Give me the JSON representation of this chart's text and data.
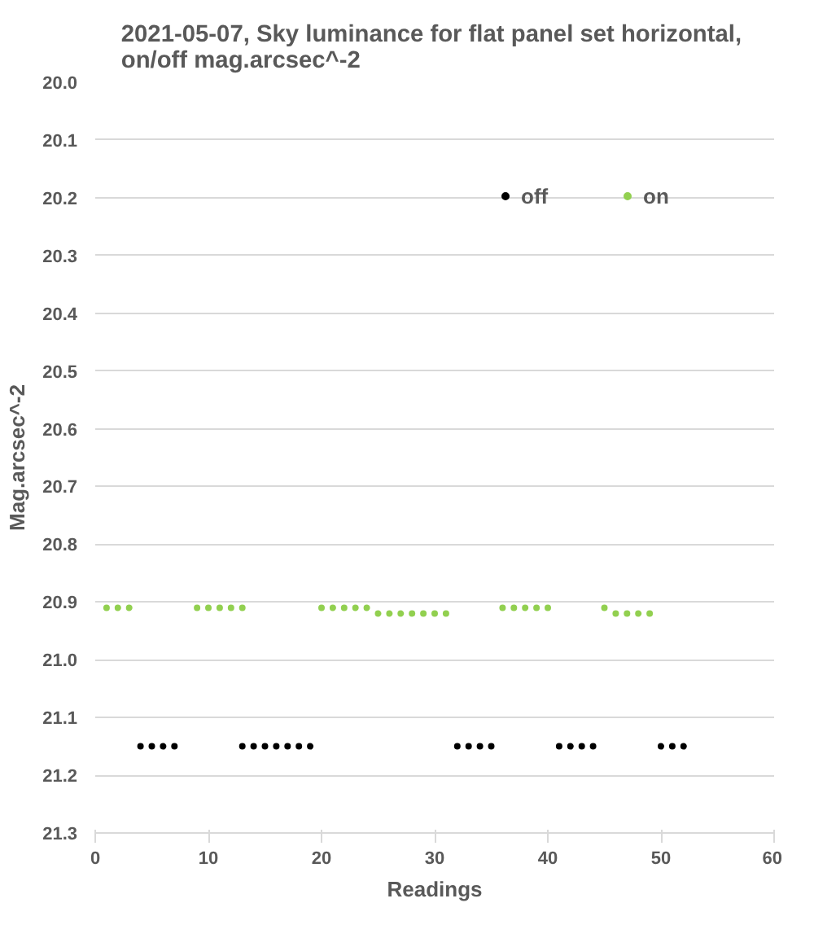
{
  "chart_data": {
    "type": "scatter",
    "title": "2021-05-07, Sky luminance for flat panel  set horizontal, on/off mag.arcsec^-2",
    "xlabel": "Readings",
    "ylabel": "Mag.arcsec^-2",
    "xlim": [
      0,
      60
    ],
    "xticks": [
      0,
      10,
      20,
      30,
      40,
      50,
      60
    ],
    "ylim": [
      21.3,
      20.0
    ],
    "yticks": [
      {
        "value": 20.0,
        "label": "20.0"
      },
      {
        "value": 20.1,
        "label": "20.1"
      },
      {
        "value": 20.2,
        "label": "20.2"
      },
      {
        "value": 20.3,
        "label": "20.3"
      },
      {
        "value": 20.4,
        "label": "20.4"
      },
      {
        "value": 20.5,
        "label": "20.5"
      },
      {
        "value": 20.6,
        "label": "20.6"
      },
      {
        "value": 20.7,
        "label": "20.7"
      },
      {
        "value": 20.8,
        "label": "20.8"
      },
      {
        "value": 20.9,
        "label": "20.9"
      },
      {
        "value": 21.0,
        "label": "21.0"
      },
      {
        "value": 21.1,
        "label": "21.1"
      },
      {
        "value": 21.2,
        "label": "21.2"
      },
      {
        "value": 21.3,
        "label": "21.3"
      }
    ],
    "grid": "y",
    "legend": "top right",
    "marker": "circle",
    "series": [
      {
        "name": "off",
        "color": "#000000",
        "x": [
          4,
          5,
          6,
          7,
          13,
          14,
          15,
          16,
          17,
          18,
          19,
          32,
          33,
          34,
          35,
          41,
          42,
          43,
          44,
          50,
          51,
          52
        ],
        "values": [
          21.15,
          21.15,
          21.15,
          21.15,
          21.15,
          21.15,
          21.15,
          21.15,
          21.15,
          21.15,
          21.15,
          21.15,
          21.15,
          21.15,
          21.15,
          21.15,
          21.15,
          21.15,
          21.15,
          21.15,
          21.15,
          21.15
        ]
      },
      {
        "name": "on",
        "color": "#92d050",
        "x": [
          1,
          2,
          3,
          9,
          10,
          11,
          12,
          13,
          20,
          21,
          22,
          23,
          24,
          25,
          26,
          27,
          28,
          29,
          30,
          31,
          36,
          37,
          38,
          39,
          40,
          45,
          46,
          47,
          48,
          49
        ],
        "values": [
          20.91,
          20.91,
          20.91,
          20.91,
          20.91,
          20.91,
          20.91,
          20.91,
          20.91,
          20.91,
          20.91,
          20.91,
          20.91,
          20.92,
          20.92,
          20.92,
          20.92,
          20.92,
          20.92,
          20.92,
          20.91,
          20.91,
          20.91,
          20.91,
          20.91,
          20.91,
          20.92,
          20.92,
          20.92,
          20.92
        ]
      }
    ]
  }
}
